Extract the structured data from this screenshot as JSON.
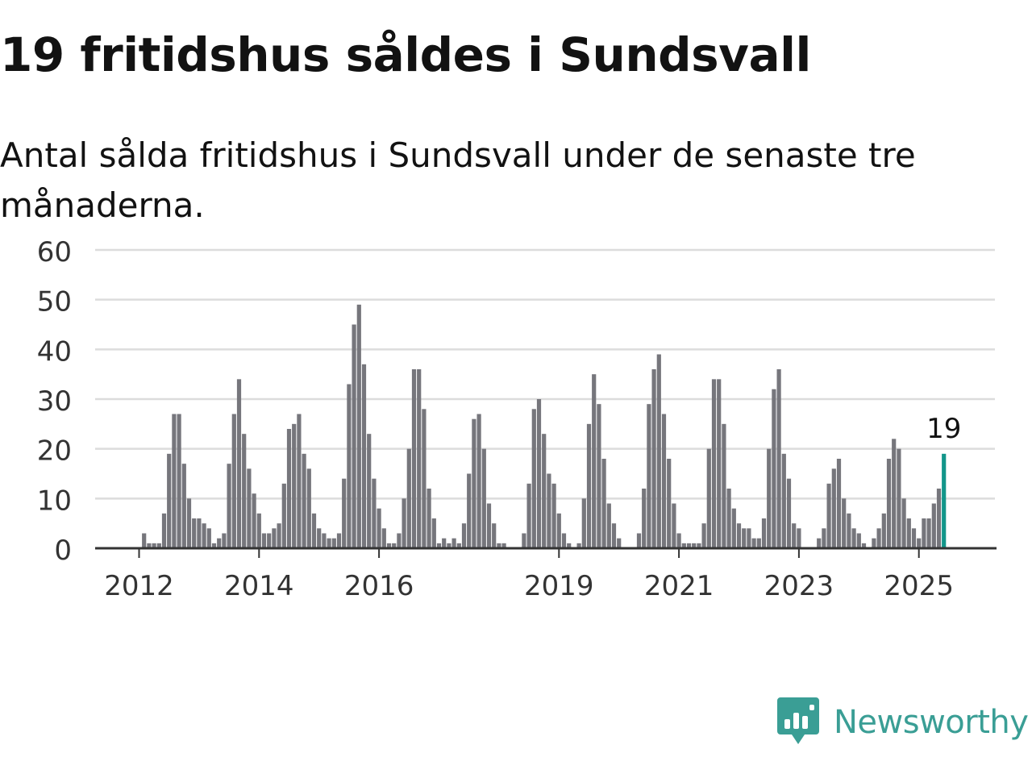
{
  "title": "19 fritidshus såldes i Sundsvall",
  "subtitle": "Antal sålda fritidshus i Sundsvall under de senaste tre månaderna.",
  "brand": {
    "name": "Newsworthy",
    "icon": "newsworthy-logo-icon",
    "color": "#3a9e95"
  },
  "colors": {
    "bar": "#76767c",
    "highlight": "#12968a",
    "grid": "#dcdcdc",
    "axis": "#333333",
    "text": "#121212"
  },
  "chart_data": {
    "type": "bar",
    "x_start": "2012-01",
    "x_step": "month",
    "ylim": [
      0,
      60
    ],
    "yticks": [
      0,
      10,
      20,
      30,
      40,
      50,
      60
    ],
    "xticks": [
      "2012",
      "2014",
      "2016",
      "2019",
      "2021",
      "2023",
      "2025"
    ],
    "values": [
      0,
      3,
      1,
      1,
      1,
      7,
      19,
      27,
      27,
      17,
      10,
      6,
      6,
      5,
      4,
      1,
      2,
      3,
      17,
      27,
      34,
      23,
      16,
      11,
      7,
      3,
      3,
      4,
      5,
      13,
      24,
      25,
      27,
      19,
      16,
      7,
      4,
      3,
      2,
      2,
      3,
      14,
      33,
      45,
      49,
      37,
      23,
      14,
      8,
      4,
      1,
      1,
      3,
      10,
      20,
      36,
      36,
      28,
      12,
      6,
      1,
      2,
      1,
      2,
      1,
      5,
      15,
      26,
      27,
      20,
      9,
      5,
      1,
      1,
      0,
      0,
      0,
      3,
      13,
      28,
      30,
      23,
      15,
      13,
      7,
      3,
      1,
      0,
      1,
      10,
      25,
      35,
      29,
      18,
      9,
      5,
      2,
      0,
      0,
      0,
      3,
      12,
      29,
      36,
      39,
      27,
      18,
      9,
      3,
      1,
      1,
      1,
      1,
      5,
      20,
      34,
      34,
      25,
      12,
      8,
      5,
      4,
      4,
      2,
      2,
      6,
      20,
      32,
      36,
      19,
      14,
      5,
      4,
      0,
      0,
      0,
      2,
      4,
      13,
      16,
      18,
      10,
      7,
      4,
      3,
      1,
      0,
      2,
      4,
      7,
      18,
      22,
      20,
      10,
      6,
      4,
      2,
      6,
      6,
      9,
      12,
      19
    ],
    "highlight": {
      "label": "19",
      "value": 19
    },
    "grid": true,
    "legend": "none"
  }
}
